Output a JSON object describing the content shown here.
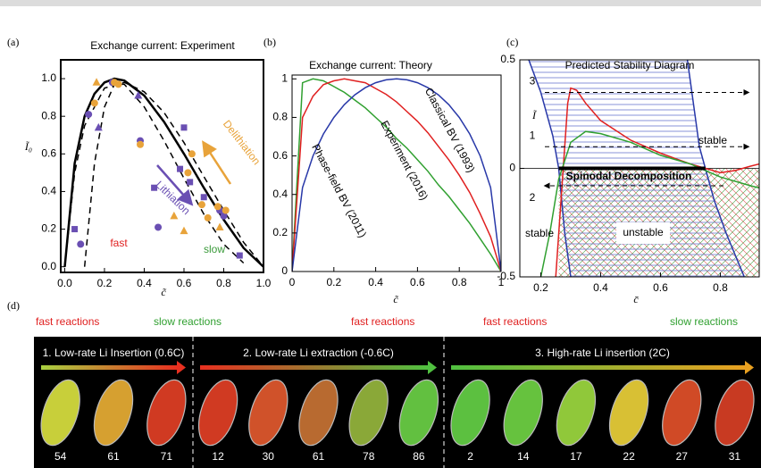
{
  "chart_data": [
    {
      "type": "scatter",
      "label": "(a)",
      "title": "Exchange current:  Experiment",
      "x_label": "c̃",
      "y_label": "Ĩ₀",
      "xlim": [
        -0.02,
        1.0
      ],
      "ylim": [
        -0.03,
        1.1
      ],
      "xticks": [
        {
          "value": 0,
          "label": "0.0"
        },
        0.2,
        0.4,
        0.6,
        0.8,
        {
          "value": 1,
          "label": "1.0"
        }
      ],
      "yticks": [
        {
          "value": 0,
          "label": "0.0"
        },
        0.2,
        0.4,
        0.6,
        0.8,
        {
          "value": 1,
          "label": "1.0"
        }
      ],
      "lines": [
        {
          "color": "#000000",
          "dashed": false,
          "x": [
            0,
            0.05,
            0.1,
            0.15,
            0.2,
            0.25,
            0.3,
            0.4,
            0.5,
            0.6,
            0.7,
            0.8,
            0.9,
            1.0
          ],
          "values": [
            0,
            0.55,
            0.8,
            0.92,
            0.98,
            1.0,
            0.99,
            0.91,
            0.77,
            0.6,
            0.42,
            0.25,
            0.1,
            0
          ]
        },
        {
          "color": "#000000",
          "dashed": true,
          "x": [
            0.1,
            0.15,
            0.2,
            0.25,
            0.3,
            0.4,
            0.5,
            0.6,
            0.7,
            0.8,
            0.9
          ],
          "values": [
            0,
            0.55,
            0.85,
            0.97,
            0.97,
            0.85,
            0.67,
            0.47,
            0.28,
            0.12,
            0.02
          ]
        },
        {
          "color": "#000000",
          "dashed": true,
          "x": [
            0,
            0.05,
            0.1,
            0.2,
            0.3,
            0.4,
            0.5,
            0.6,
            0.7,
            0.8,
            0.9,
            1.0
          ],
          "values": [
            0,
            0.5,
            0.75,
            0.95,
            0.98,
            0.93,
            0.82,
            0.66,
            0.48,
            0.3,
            0.13,
            0
          ]
        }
      ],
      "series": [
        {
          "color": "#6a4fb3",
          "marker": "square",
          "x": [
            0.05,
            0.45,
            0.58,
            0.6,
            0.63,
            0.7,
            0.88
          ],
          "values": [
            0.2,
            0.42,
            0.52,
            0.74,
            0.45,
            0.37,
            0.06
          ]
        },
        {
          "color": "#6a4fb3",
          "marker": "circle",
          "x": [
            0.08,
            0.12,
            0.24,
            0.38,
            0.47,
            0.78,
            0.8
          ],
          "values": [
            0.12,
            0.81,
            0.98,
            0.67,
            0.21,
            0.3,
            0.27
          ]
        },
        {
          "color": "#6a4fb3",
          "marker": "triangle",
          "x": [
            0.17,
            0.37
          ],
          "values": [
            0.74,
            0.91
          ]
        },
        {
          "color": "#e8a33a",
          "marker": "circle",
          "x": [
            0.15,
            0.25,
            0.27,
            0.38,
            0.62,
            0.64,
            0.69,
            0.72,
            0.77,
            0.81
          ],
          "values": [
            0.87,
            0.98,
            0.97,
            0.65,
            0.5,
            0.6,
            0.33,
            0.26,
            0.32,
            0.3
          ]
        },
        {
          "color": "#e8a33a",
          "marker": "triangle",
          "x": [
            0.16,
            0.55,
            0.6,
            0.78
          ],
          "values": [
            0.98,
            0.27,
            0.19,
            0.21
          ]
        }
      ],
      "annotations": [
        {
          "text": "fast",
          "color": "#e02020"
        },
        {
          "text": "slow",
          "color": "#3a9a3a"
        },
        {
          "text": "Lithiation",
          "color": "#6a4fb3"
        },
        {
          "text": "Delithiation",
          "color": "#e8a33a"
        }
      ]
    },
    {
      "type": "line",
      "label": "(b)",
      "title": "Exchange current:  Theory",
      "x_label": "c̃",
      "xlim": [
        0,
        1
      ],
      "ylim": [
        0,
        1.02
      ],
      "xticks": [
        0,
        0.2,
        0.4,
        0.6,
        0.8,
        1
      ],
      "yticks": [
        0,
        0.2,
        0.4,
        0.6,
        0.8,
        1
      ],
      "lines": [
        {
          "color": "#30a030",
          "dashed": false,
          "x": [
            0,
            0.05,
            0.1,
            0.15,
            0.2,
            0.25,
            0.3,
            0.35,
            0.4,
            0.45,
            0.5,
            0.55,
            0.6,
            0.65,
            0.7,
            0.75,
            0.8,
            0.85,
            0.9,
            0.95,
            1
          ],
          "values": [
            0,
            0.98,
            1,
            0.99,
            0.96,
            0.93,
            0.89,
            0.85,
            0.8,
            0.75,
            0.69,
            0.64,
            0.58,
            0.52,
            0.45,
            0.39,
            0.32,
            0.25,
            0.17,
            0.09,
            0
          ]
        },
        {
          "color": "#e02020",
          "dashed": false,
          "x": [
            0,
            0.05,
            0.1,
            0.15,
            0.2,
            0.25,
            0.3,
            0.35,
            0.4,
            0.45,
            0.5,
            0.55,
            0.6,
            0.65,
            0.7,
            0.75,
            0.8,
            0.85,
            0.9,
            0.95,
            1
          ],
          "values": [
            0,
            0.8,
            0.91,
            0.97,
            0.99,
            1,
            0.99,
            0.98,
            0.95,
            0.92,
            0.88,
            0.83,
            0.78,
            0.72,
            0.65,
            0.58,
            0.5,
            0.41,
            0.3,
            0.18,
            0
          ]
        },
        {
          "color": "#2838a8",
          "dashed": false,
          "x": [
            0,
            0.05,
            0.1,
            0.15,
            0.2,
            0.25,
            0.3,
            0.35,
            0.4,
            0.45,
            0.5,
            0.55,
            0.6,
            0.65,
            0.7,
            0.75,
            0.8,
            0.85,
            0.9,
            0.95,
            1
          ],
          "values": [
            0,
            0.436,
            0.6,
            0.714,
            0.8,
            0.866,
            0.917,
            0.954,
            0.98,
            0.995,
            1,
            0.995,
            0.98,
            0.954,
            0.917,
            0.866,
            0.8,
            0.714,
            0.6,
            0.436,
            0
          ]
        }
      ],
      "annotations": [
        {
          "text": "Phase-field BV (2011)",
          "color": "#000000"
        },
        {
          "text": "Experiment (2016)",
          "color": "#000000"
        },
        {
          "text": "Classical BV (1993)",
          "color": "#000000"
        }
      ]
    },
    {
      "type": "stability",
      "label": "(c)",
      "title": "Predicted Stability Diagram",
      "x_label": "c̄",
      "y_label": "Ĩ",
      "xlim": [
        0.13,
        0.93
      ],
      "ylim": [
        -0.5,
        0.5
      ],
      "xticks": [
        0.2,
        0.4,
        0.6,
        0.8
      ],
      "yticks": [
        -0.5,
        0,
        0.5
      ],
      "lines": [
        {
          "color": "#2838a8",
          "dashed": false,
          "x": [
            0.16,
            0.2,
            0.24,
            0.26,
            0.27,
            0.28,
            0.3
          ],
          "values": [
            0.5,
            0.35,
            0.15,
            0,
            -0.15,
            -0.3,
            -0.5
          ]
        },
        {
          "color": "#2838a8",
          "dashed": false,
          "x": [
            0.69,
            0.71,
            0.73,
            0.75,
            0.78,
            0.82,
            0.88
          ],
          "values": [
            0.5,
            0.3,
            0.1,
            0,
            -0.15,
            -0.3,
            -0.5
          ]
        },
        {
          "color": "#e02020",
          "dashed": false,
          "x": [
            0.25,
            0.27,
            0.29,
            0.3,
            0.32,
            0.35,
            0.4,
            0.5,
            0.6,
            0.7,
            0.75,
            0.8,
            0.85,
            0.9,
            0.93
          ],
          "values": [
            -0.5,
            -0.1,
            0.3,
            0.37,
            0.36,
            0.3,
            0.22,
            0.13,
            0.07,
            0.02,
            0,
            -0.02,
            -0.01,
            0.01,
            0.02
          ]
        },
        {
          "color": "#30a030",
          "dashed": false,
          "x": [
            0.2,
            0.23,
            0.26,
            0.3,
            0.35,
            0.4,
            0.5,
            0.6,
            0.7,
            0.75,
            0.8,
            0.9,
            0.93
          ],
          "values": [
            -0.5,
            -0.3,
            -0.05,
            0.12,
            0.17,
            0.16,
            0.12,
            0.06,
            0.02,
            -0.01,
            -0.04,
            -0.08,
            -0.09
          ]
        }
      ],
      "spinodal": [
        0.26,
        0.75
      ],
      "arrows": [
        {
          "label": "3",
          "y": 0.35,
          "direction": "right"
        },
        {
          "label": "1",
          "y": 0.1,
          "direction": "right"
        },
        {
          "label": "2",
          "y": -0.08,
          "direction": "left"
        }
      ],
      "annotations": [
        {
          "text": "stable",
          "color": "#000000"
        },
        {
          "text": "stable",
          "color": "#000000"
        },
        {
          "text": "unstable",
          "color": "#000000"
        },
        {
          "text": "Spinodal Decomposition",
          "color": "#000000"
        }
      ]
    }
  ],
  "panel_d": {
    "label": "(d)",
    "headers": [
      {
        "text": "fast reactions",
        "color": "#e02020"
      },
      {
        "text": "slow reactions",
        "color": "#30a030"
      },
      {
        "text": "fast reactions",
        "color": "#e02020"
      },
      {
        "text": "fast reactions",
        "color": "#e02020"
      },
      {
        "text": "slow reactions",
        "color": "#30a030"
      }
    ],
    "sections": [
      {
        "title": "1.  Low-rate Li Insertion (0.6C)",
        "gradient": [
          "#a8d040",
          "#e83020"
        ],
        "frames": [
          {
            "label": "54",
            "color": "#c8cf3a"
          },
          {
            "label": "61",
            "color": "#d6a030"
          },
          {
            "label": "71",
            "color": "#d03a22"
          }
        ]
      },
      {
        "title": "2.  Low-rate Li extraction (-0.6C)",
        "gradient": [
          "#e83020",
          "#50c040"
        ],
        "frames": [
          {
            "label": "12",
            "color": "#d03a22"
          },
          {
            "label": "30",
            "color": "#d0522a"
          },
          {
            "label": "61",
            "color": "#b86a30"
          },
          {
            "label": "78",
            "color": "#8aa838"
          },
          {
            "label": "86",
            "color": "#62c040"
          }
        ]
      },
      {
        "title": "3.  High-rate Li insertion (2C)",
        "gradient": [
          "#50c040",
          "#e8a020"
        ],
        "frames": [
          {
            "label": "2",
            "color": "#5cc040"
          },
          {
            "label": "14",
            "color": "#66c23e"
          },
          {
            "label": "17",
            "color": "#90c83a"
          },
          {
            "label": "22",
            "color": "#d8c034"
          },
          {
            "label": "27",
            "color": "#d04a26"
          },
          {
            "label": "31",
            "color": "#c83a22"
          }
        ]
      }
    ]
  }
}
